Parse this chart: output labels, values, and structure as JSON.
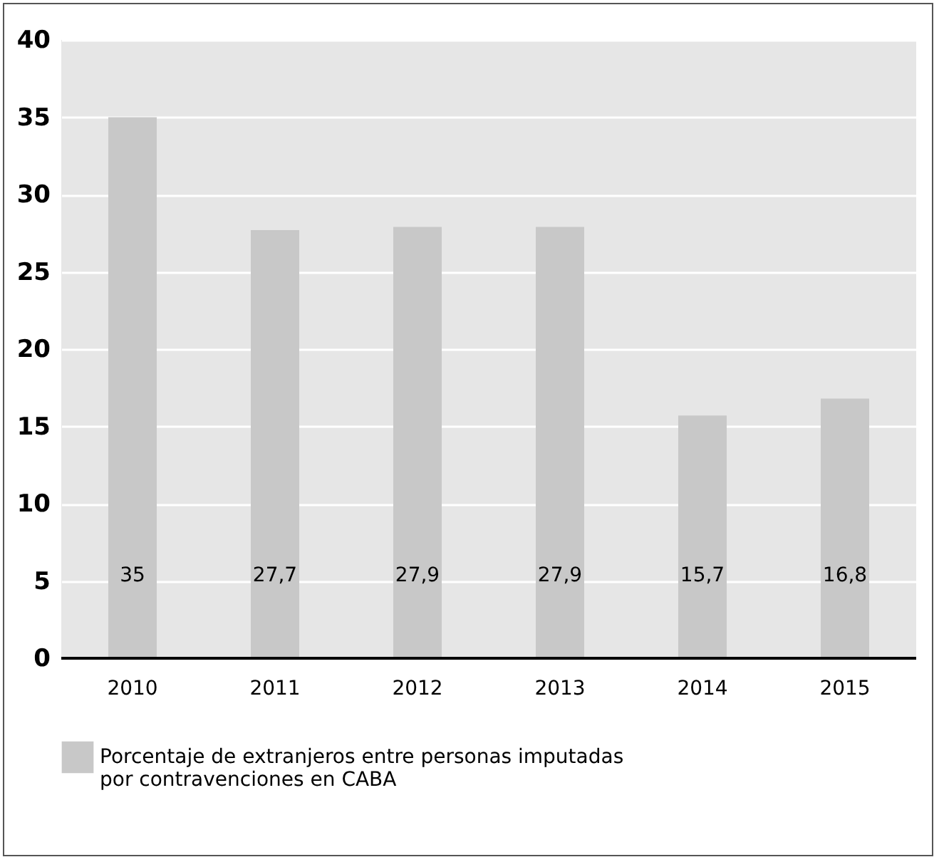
{
  "chart_data": {
    "type": "bar",
    "categories": [
      "2010",
      "2011",
      "2012",
      "2013",
      "2014",
      "2015"
    ],
    "series": [
      {
        "name": "Porcentaje de extranjeros entre personas imputadas por contravenciones en CABA",
        "color": "#c8c8c8",
        "values": [
          35,
          27.7,
          27.9,
          27.9,
          15.7,
          16.8
        ],
        "value_labels": [
          "35",
          "27,7",
          "27,9",
          "27,9",
          "15,7",
          "16,8"
        ]
      }
    ],
    "ylim": [
      0,
      40
    ],
    "yticks": [
      0,
      5,
      10,
      15,
      20,
      25,
      30,
      35,
      40
    ],
    "grid": "y",
    "legend": "bottom"
  }
}
